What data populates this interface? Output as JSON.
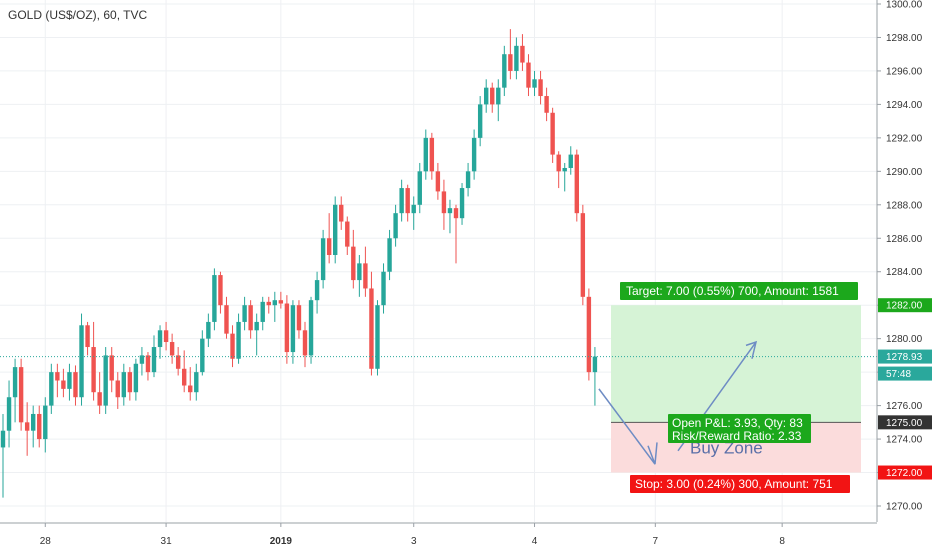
{
  "title": "GOLD (US$/OZ), 60, TVC",
  "colors": {
    "up": "#26a69a",
    "down": "#ef5350",
    "grid": "#eef0f3",
    "axis": "#9aa0a6",
    "target_zone": "#d6f3d6",
    "stop_zone": "#fbdcdc",
    "target_label": "#1ca81c",
    "stop_label": "#f21414",
    "price_label": "#2aa89c",
    "arrow": "#6e8cc4"
  },
  "chart_data": {
    "type": "candlestick",
    "title": "GOLD (US$/OZ), 60, TVC",
    "ylim": [
      1268.5,
      1300.5
    ],
    "y_ticks": [
      1270.0,
      1272.0,
      1274.0,
      1276.0,
      1278.0,
      1280.0,
      1282.0,
      1284.0,
      1286.0,
      1288.0,
      1290.0,
      1292.0,
      1294.0,
      1296.0,
      1298.0,
      1300.0
    ],
    "x_ticks": [
      {
        "label": "28",
        "bar": 7
      },
      {
        "label": "31",
        "bar": 27
      },
      {
        "label": "2019",
        "bar": 46,
        "bold": true
      },
      {
        "label": "3",
        "bar": 68
      },
      {
        "label": "4",
        "bar": 88
      },
      {
        "label": "7",
        "bar": 108
      },
      {
        "label": "8",
        "bar": 129
      }
    ],
    "current_price": 1278.93,
    "countdown": "57:48",
    "target_price": 1282.0,
    "entry_price": 1275.0,
    "stop_price": 1272.0,
    "target_label": "Target: 7.00 (0.55%) 700, Amount: 1581",
    "stop_label": "Stop: 3.00 (0.24%) 300, Amount: 751",
    "open_pnl_label": "Open P&L: 3.93, Qty: 83",
    "risk_reward_label": "Risk/Reward Ratio: 2.33",
    "zone_label": "Buy Zone",
    "candles": [
      [
        1273.5,
        1275.5,
        1270.5,
        1274.5
      ],
      [
        1274.5,
        1277.5,
        1273.5,
        1276.5
      ],
      [
        1276.5,
        1278.8,
        1275.0,
        1278.3
      ],
      [
        1278.3,
        1278.8,
        1274.5,
        1275.0
      ],
      [
        1275.0,
        1276.2,
        1273.0,
        1274.5
      ],
      [
        1274.5,
        1276.0,
        1273.5,
        1275.5
      ],
      [
        1275.5,
        1276.0,
        1273.5,
        1274.0
      ],
      [
        1274.0,
        1276.5,
        1273.2,
        1276.0
      ],
      [
        1276.0,
        1278.5,
        1275.5,
        1278.0
      ],
      [
        1278.0,
        1278.5,
        1276.5,
        1277.5
      ],
      [
        1277.5,
        1278.2,
        1276.5,
        1277.0
      ],
      [
        1277.0,
        1278.5,
        1276.3,
        1278.0
      ],
      [
        1278.0,
        1278.4,
        1276.0,
        1276.5
      ],
      [
        1276.5,
        1281.5,
        1276.0,
        1280.8
      ],
      [
        1280.8,
        1281.0,
        1279.0,
        1279.5
      ],
      [
        1279.5,
        1281.0,
        1276.3,
        1276.8
      ],
      [
        1276.8,
        1278.0,
        1275.5,
        1276.0
      ],
      [
        1276.0,
        1279.5,
        1275.5,
        1279.0
      ],
      [
        1279.0,
        1279.5,
        1276.8,
        1277.5
      ],
      [
        1277.5,
        1278.0,
        1275.8,
        1276.5
      ],
      [
        1276.5,
        1278.5,
        1276.0,
        1278.0
      ],
      [
        1278.0,
        1278.3,
        1276.3,
        1276.8
      ],
      [
        1276.8,
        1278.8,
        1276.3,
        1278.5
      ],
      [
        1278.5,
        1279.5,
        1277.8,
        1279.0
      ],
      [
        1279.0,
        1279.2,
        1277.5,
        1278.0
      ],
      [
        1278.0,
        1280.2,
        1277.7,
        1279.5
      ],
      [
        1279.5,
        1280.8,
        1278.8,
        1280.5
      ],
      [
        1280.5,
        1281.0,
        1279.3,
        1279.8
      ],
      [
        1279.8,
        1280.3,
        1278.5,
        1279.0
      ],
      [
        1279.0,
        1279.5,
        1277.8,
        1278.2
      ],
      [
        1278.2,
        1279.3,
        1276.8,
        1277.2
      ],
      [
        1277.2,
        1278.3,
        1276.3,
        1276.8
      ],
      [
        1276.8,
        1278.5,
        1276.3,
        1278.0
      ],
      [
        1278.0,
        1280.5,
        1277.8,
        1280.0
      ],
      [
        1280.0,
        1281.5,
        1279.5,
        1281.0
      ],
      [
        1281.0,
        1284.2,
        1280.5,
        1283.8
      ],
      [
        1283.8,
        1284.0,
        1281.5,
        1282.0
      ],
      [
        1282.0,
        1282.5,
        1280.0,
        1280.3
      ],
      [
        1280.3,
        1280.8,
        1278.3,
        1278.8
      ],
      [
        1278.8,
        1281.5,
        1278.5,
        1281.0
      ],
      [
        1281.0,
        1282.5,
        1280.5,
        1282.0
      ],
      [
        1282.0,
        1282.3,
        1280.0,
        1280.5
      ],
      [
        1280.5,
        1281.5,
        1279.0,
        1281.0
      ],
      [
        1281.0,
        1282.5,
        1280.5,
        1282.2
      ],
      [
        1282.2,
        1282.5,
        1281.5,
        1282.0
      ],
      [
        1282.0,
        1282.8,
        1281.0,
        1282.3
      ],
      [
        1282.3,
        1282.8,
        1281.8,
        1282.1
      ],
      [
        1282.1,
        1282.6,
        1278.5,
        1279.2
      ],
      [
        1279.2,
        1282.3,
        1278.5,
        1282.0
      ],
      [
        1282.0,
        1282.3,
        1280.0,
        1280.5
      ],
      [
        1280.5,
        1281.0,
        1278.3,
        1279.0
      ],
      [
        1279.0,
        1282.5,
        1278.5,
        1282.3
      ],
      [
        1282.3,
        1284.0,
        1281.5,
        1283.5
      ],
      [
        1283.5,
        1286.5,
        1283.0,
        1286.0
      ],
      [
        1286.0,
        1287.5,
        1284.5,
        1285.0
      ],
      [
        1285.0,
        1288.5,
        1284.5,
        1288.0
      ],
      [
        1288.0,
        1288.5,
        1286.5,
        1287.0
      ],
      [
        1287.0,
        1287.3,
        1285.0,
        1285.5
      ],
      [
        1285.5,
        1286.5,
        1283.0,
        1283.5
      ],
      [
        1283.5,
        1285.0,
        1282.5,
        1284.5
      ],
      [
        1284.5,
        1285.5,
        1282.5,
        1283.0
      ],
      [
        1283.0,
        1284.0,
        1277.8,
        1278.2
      ],
      [
        1278.2,
        1282.3,
        1277.8,
        1282.0
      ],
      [
        1282.0,
        1284.5,
        1281.5,
        1284.0
      ],
      [
        1284.0,
        1286.5,
        1283.5,
        1286.0
      ],
      [
        1286.0,
        1288.0,
        1285.5,
        1287.5
      ],
      [
        1287.5,
        1289.5,
        1287.0,
        1289.0
      ],
      [
        1289.0,
        1289.2,
        1287.0,
        1287.5
      ],
      [
        1287.5,
        1288.5,
        1286.5,
        1288.0
      ],
      [
        1288.0,
        1290.5,
        1287.5,
        1290.0
      ],
      [
        1290.0,
        1292.5,
        1289.5,
        1292.0
      ],
      [
        1292.0,
        1292.3,
        1289.5,
        1290.0
      ],
      [
        1290.0,
        1290.5,
        1288.3,
        1288.8
      ],
      [
        1288.8,
        1289.5,
        1286.5,
        1287.5
      ],
      [
        1287.5,
        1288.3,
        1286.3,
        1287.8
      ],
      [
        1287.8,
        1288.0,
        1284.5,
        1287.2
      ],
      [
        1287.2,
        1289.3,
        1286.8,
        1289.0
      ],
      [
        1289.0,
        1290.5,
        1288.5,
        1290.0
      ],
      [
        1290.0,
        1292.5,
        1289.5,
        1292.0
      ],
      [
        1292.0,
        1294.5,
        1291.5,
        1294.0
      ],
      [
        1294.0,
        1295.5,
        1293.5,
        1295.0
      ],
      [
        1295.0,
        1295.3,
        1293.5,
        1294.0
      ],
      [
        1294.0,
        1295.5,
        1293.0,
        1295.0
      ],
      [
        1295.0,
        1297.5,
        1294.5,
        1297.0
      ],
      [
        1297.0,
        1298.5,
        1295.5,
        1296.0
      ],
      [
        1296.0,
        1298.0,
        1295.5,
        1297.5
      ],
      [
        1297.5,
        1298.2,
        1296.0,
        1296.5
      ],
      [
        1296.5,
        1297.0,
        1294.5,
        1295.0
      ],
      [
        1295.0,
        1296.0,
        1294.5,
        1295.5
      ],
      [
        1295.5,
        1296.0,
        1294.0,
        1294.5
      ],
      [
        1294.5,
        1295.0,
        1293.0,
        1293.5
      ],
      [
        1293.5,
        1293.8,
        1290.5,
        1291.0
      ],
      [
        1291.0,
        1291.2,
        1289.0,
        1290.0
      ],
      [
        1290.0,
        1290.5,
        1288.8,
        1290.2
      ],
      [
        1290.2,
        1291.5,
        1289.8,
        1291.0
      ],
      [
        1291.0,
        1291.3,
        1287.0,
        1287.5
      ],
      [
        1287.5,
        1288.0,
        1282.0,
        1282.5
      ],
      [
        1282.5,
        1283.0,
        1277.5,
        1278.0
      ],
      [
        1278.0,
        1279.5,
        1276.0,
        1278.93
      ]
    ]
  }
}
